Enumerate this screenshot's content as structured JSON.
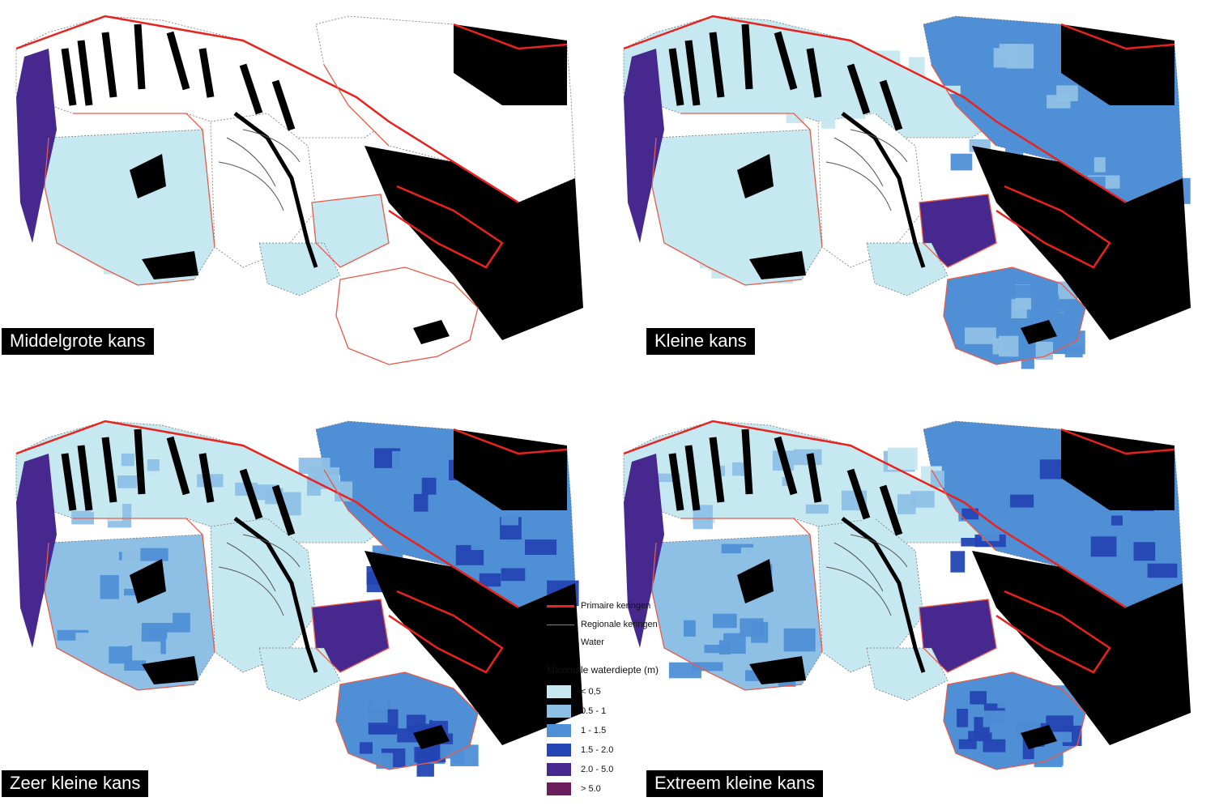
{
  "panels": [
    {
      "label": "Middelgrote kans",
      "level": 0
    },
    {
      "label": "Kleine kans",
      "level": 1
    },
    {
      "label": "Zeer kleine kans",
      "level": 2
    },
    {
      "label": "Extreem kleine kans",
      "level": 3
    }
  ],
  "legend": {
    "primary_dike": "Primaire keringen",
    "regional_dike": "Regionale keringen",
    "water": "Water",
    "depth_title": "Maximale waterdiepte (m)",
    "classes": [
      {
        "label": "< 0,5",
        "color": "#c6e8f0"
      },
      {
        "label": "0.5 - 1",
        "color": "#8ec0e6"
      },
      {
        "label": "1 - 1.5",
        "color": "#4f8fd6"
      },
      {
        "label": "1.5 - 2.0",
        "color": "#2446b4"
      },
      {
        "label": "2.0 - 5.0",
        "color": "#46288e"
      },
      {
        "label": "> 5.0",
        "color": "#6a1e5e"
      }
    ]
  },
  "colors": {
    "primary_dike": "#e8231e",
    "regional_dike": "#e85a4a",
    "water": "#000000",
    "boundary": "#777777"
  }
}
